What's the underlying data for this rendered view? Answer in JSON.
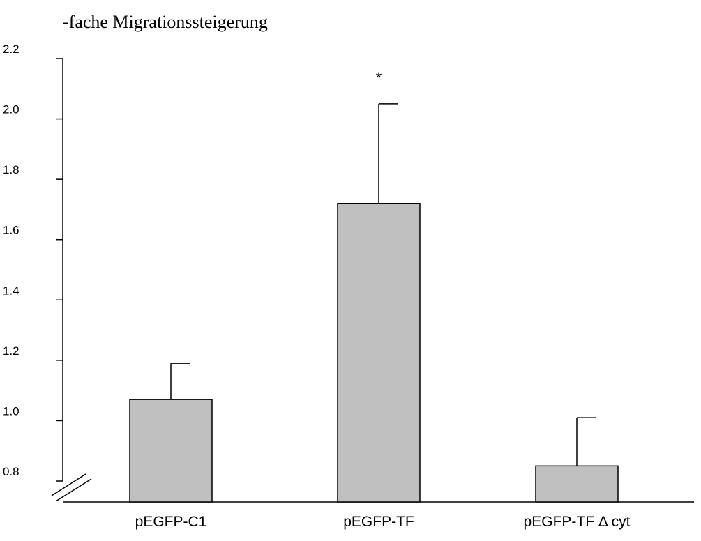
{
  "chart_data": {
    "type": "bar",
    "ylabel": "-fache Migrationssteigerung",
    "xlabel": "",
    "categories": [
      "pEGFP-C1",
      "pEGFP-TF",
      "pEGFP-TF Δ cyt"
    ],
    "series": [
      {
        "values": [
          1.07,
          1.72,
          0.85
        ],
        "error_upper": [
          0.12,
          0.33,
          0.16
        ]
      }
    ],
    "annotations": [
      {
        "category": "pEGFP-TF",
        "text": "*"
      }
    ],
    "ylim": [
      0.8,
      2.2
    ],
    "yticks": [
      0.8,
      1.0,
      1.2,
      1.4,
      1.6,
      1.8,
      2.0,
      2.2
    ],
    "ytick_labels": [
      "0.8",
      "1.0",
      "1.2",
      "1.4",
      "1.6",
      "1.8",
      "2.0",
      "2.2"
    ],
    "axis_break": true,
    "grid": false,
    "bar_color": "#c0c0c0",
    "edge_color": "#000000"
  }
}
